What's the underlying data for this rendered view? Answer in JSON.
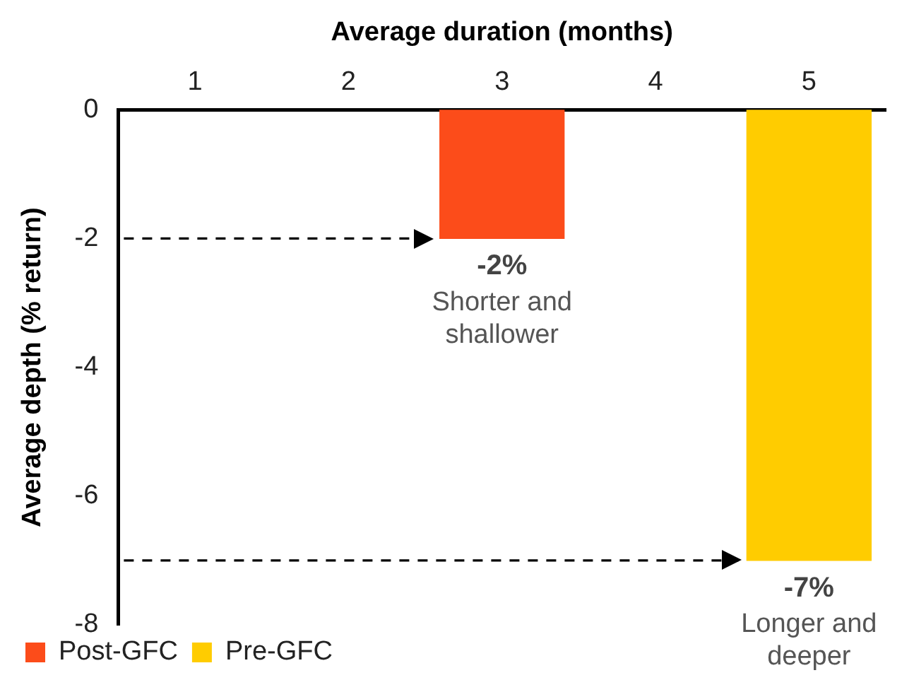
{
  "chart_data": {
    "type": "bar",
    "xlabel": "Average duration (months)",
    "ylabel": "Average depth (% return)",
    "xlim": [
      0.5,
      5.5
    ],
    "xticks": [
      1,
      2,
      3,
      4,
      5
    ],
    "ylim": [
      -8,
      0
    ],
    "yticks": [
      -8,
      -6,
      -4,
      -2,
      0
    ],
    "series": [
      {
        "name": "Post-GFC",
        "color": "#fc4c1a",
        "x": [
          3
        ],
        "values": [
          -2
        ],
        "value_labels": [
          "-2%"
        ]
      },
      {
        "name": "Pre-GFC",
        "color": "#ffcc00",
        "x": [
          5
        ],
        "values": [
          -7
        ],
        "value_labels": [
          "-7%"
        ]
      }
    ],
    "annotations": [
      {
        "text": "Shorter and shallower",
        "x": 3,
        "y": -2
      },
      {
        "text": "Longer and deeper",
        "x": 5,
        "y": -7
      }
    ],
    "ref_lines": [
      {
        "axis": "y",
        "value": -2,
        "line_style": "dashed",
        "color": "#000000"
      },
      {
        "axis": "y",
        "value": -7,
        "line_style": "dashed",
        "color": "#000000"
      }
    ],
    "grid": false,
    "legend": "bottom left"
  }
}
